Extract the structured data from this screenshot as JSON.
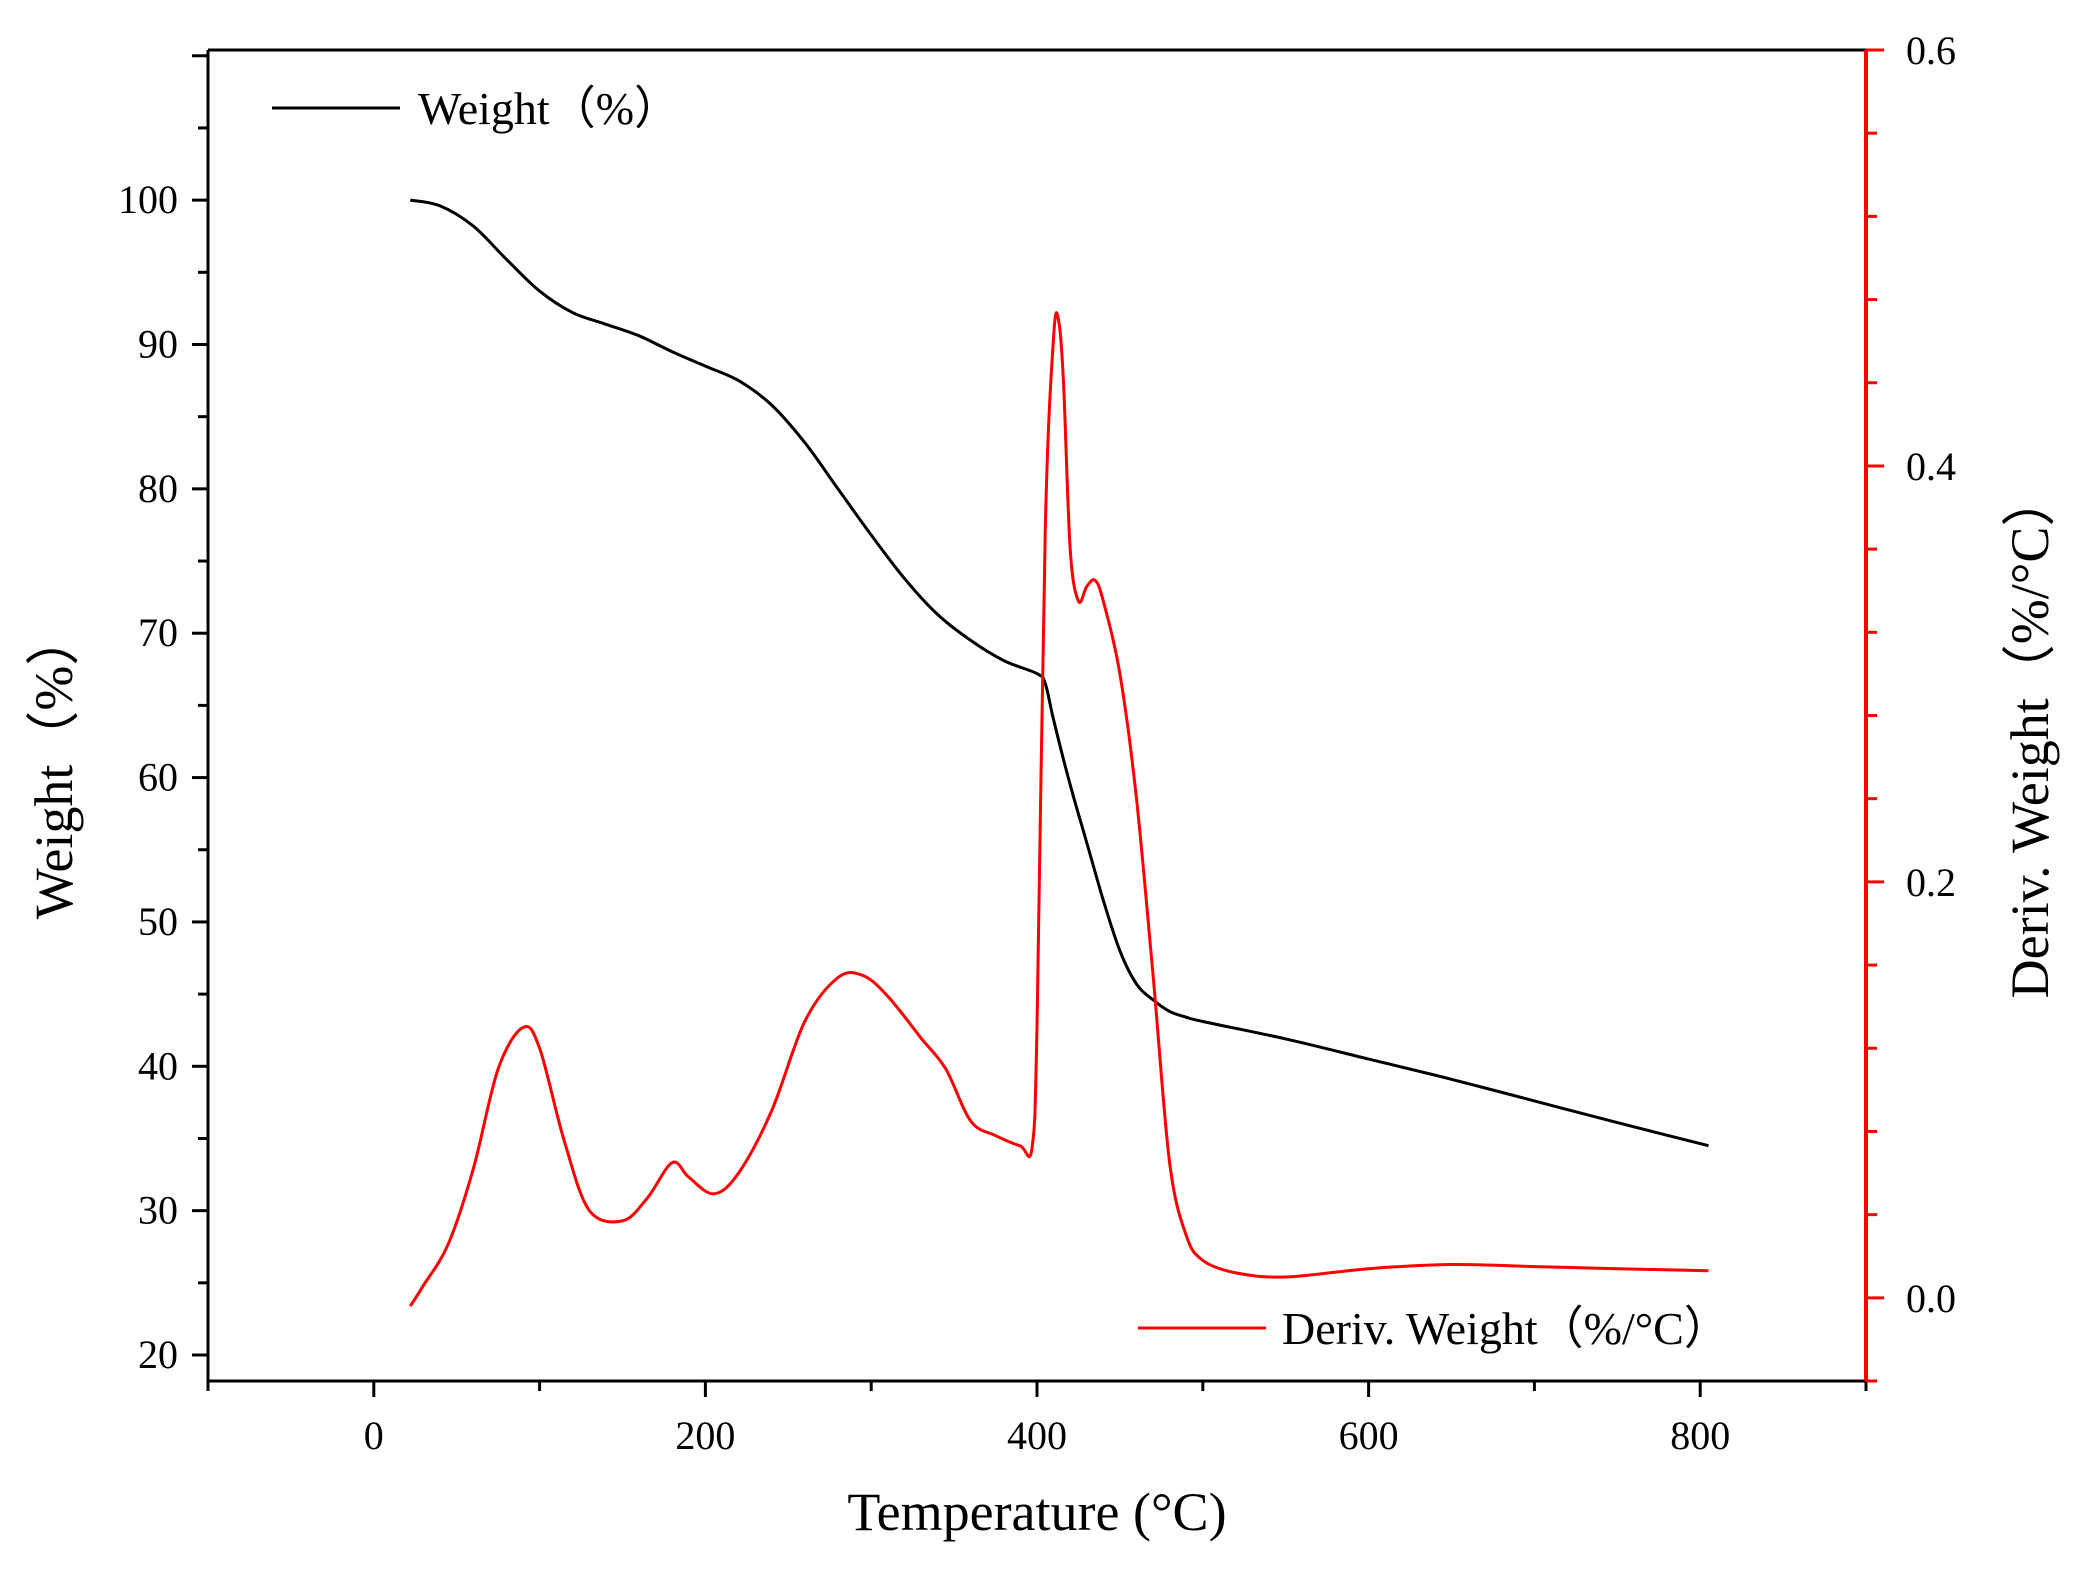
{
  "chart_data": {
    "type": "line",
    "title": "",
    "xlabel": "Temperature (°C)",
    "ylabel": "Weight（%）",
    "y2label": "Deriv. Weight（%/°C）",
    "xlim": [
      -100,
      900
    ],
    "ylim": [
      18.2,
      110.4
    ],
    "y2lim": [
      -0.04,
      0.6
    ],
    "x_ticks": [
      0,
      200,
      400,
      600,
      800
    ],
    "y_ticks": [
      20,
      30,
      40,
      50,
      60,
      70,
      80,
      90,
      100
    ],
    "y2_ticks": [
      0.0,
      0.2,
      0.4,
      0.6
    ],
    "x_tick_labels": [
      "0",
      "200",
      "400",
      "600",
      "800"
    ],
    "y_tick_labels": [
      "20",
      "30",
      "40",
      "50",
      "60",
      "70",
      "80",
      "90",
      "100"
    ],
    "y2_tick_labels": [
      "0.0",
      "0.2",
      "0.4",
      "0.6"
    ],
    "colors": {
      "weight": "#000000",
      "deriv": "#ff0000",
      "axis": "#000000",
      "right_axis": "#ff0000"
    },
    "series": [
      {
        "name": "Weight（%）",
        "axis": "left",
        "x": [
          22,
          40,
          60,
          80,
          100,
          120,
          140,
          160,
          180,
          200,
          220,
          240,
          260,
          280,
          300,
          320,
          340,
          360,
          380,
          400,
          405,
          410,
          420,
          430,
          440,
          450,
          460,
          470,
          480,
          490,
          500,
          550,
          600,
          650,
          700,
          750,
          805
        ],
        "y": [
          100,
          99.6,
          98.2,
          95.9,
          93.7,
          92.2,
          91.4,
          90.6,
          89.5,
          88.5,
          87.5,
          85.8,
          83.2,
          80.0,
          76.8,
          73.8,
          71.3,
          69.5,
          68.1,
          67.2,
          66.5,
          64.0,
          59.5,
          55.5,
          51.5,
          48.0,
          45.7,
          44.6,
          43.8,
          43.4,
          43.1,
          41.9,
          40.5,
          39.1,
          37.6,
          36.1,
          34.5
        ]
      },
      {
        "name": "Deriv. Weight（%/°C）",
        "axis": "right",
        "x": [
          22,
          30,
          45,
          60,
          75,
          90,
          100,
          115,
          130,
          150,
          165,
          180,
          190,
          205,
          220,
          240,
          260,
          280,
          295,
          310,
          330,
          345,
          360,
          375,
          390,
          397,
          400,
          405,
          410,
          413,
          416,
          420,
          425,
          430,
          435,
          440,
          450,
          460,
          470,
          480,
          490,
          500,
          520,
          550,
          600,
          650,
          700,
          750,
          805
        ],
        "y": [
          -0.004,
          0.006,
          0.026,
          0.062,
          0.11,
          0.13,
          0.12,
          0.075,
          0.042,
          0.037,
          0.048,
          0.065,
          0.058,
          0.05,
          0.06,
          0.09,
          0.133,
          0.154,
          0.155,
          0.145,
          0.125,
          0.11,
          0.085,
          0.078,
          0.073,
          0.072,
          0.13,
          0.37,
          0.462,
          0.47,
          0.44,
          0.36,
          0.335,
          0.342,
          0.345,
          0.335,
          0.3,
          0.24,
          0.155,
          0.065,
          0.03,
          0.018,
          0.012,
          0.01,
          0.014,
          0.016,
          0.015,
          0.014,
          0.013
        ]
      }
    ],
    "legend": [
      {
        "label": "Weight（%）",
        "position": "top-left"
      },
      {
        "label": "Deriv. Weight（%/°C）",
        "position": "bottom-right"
      }
    ]
  }
}
